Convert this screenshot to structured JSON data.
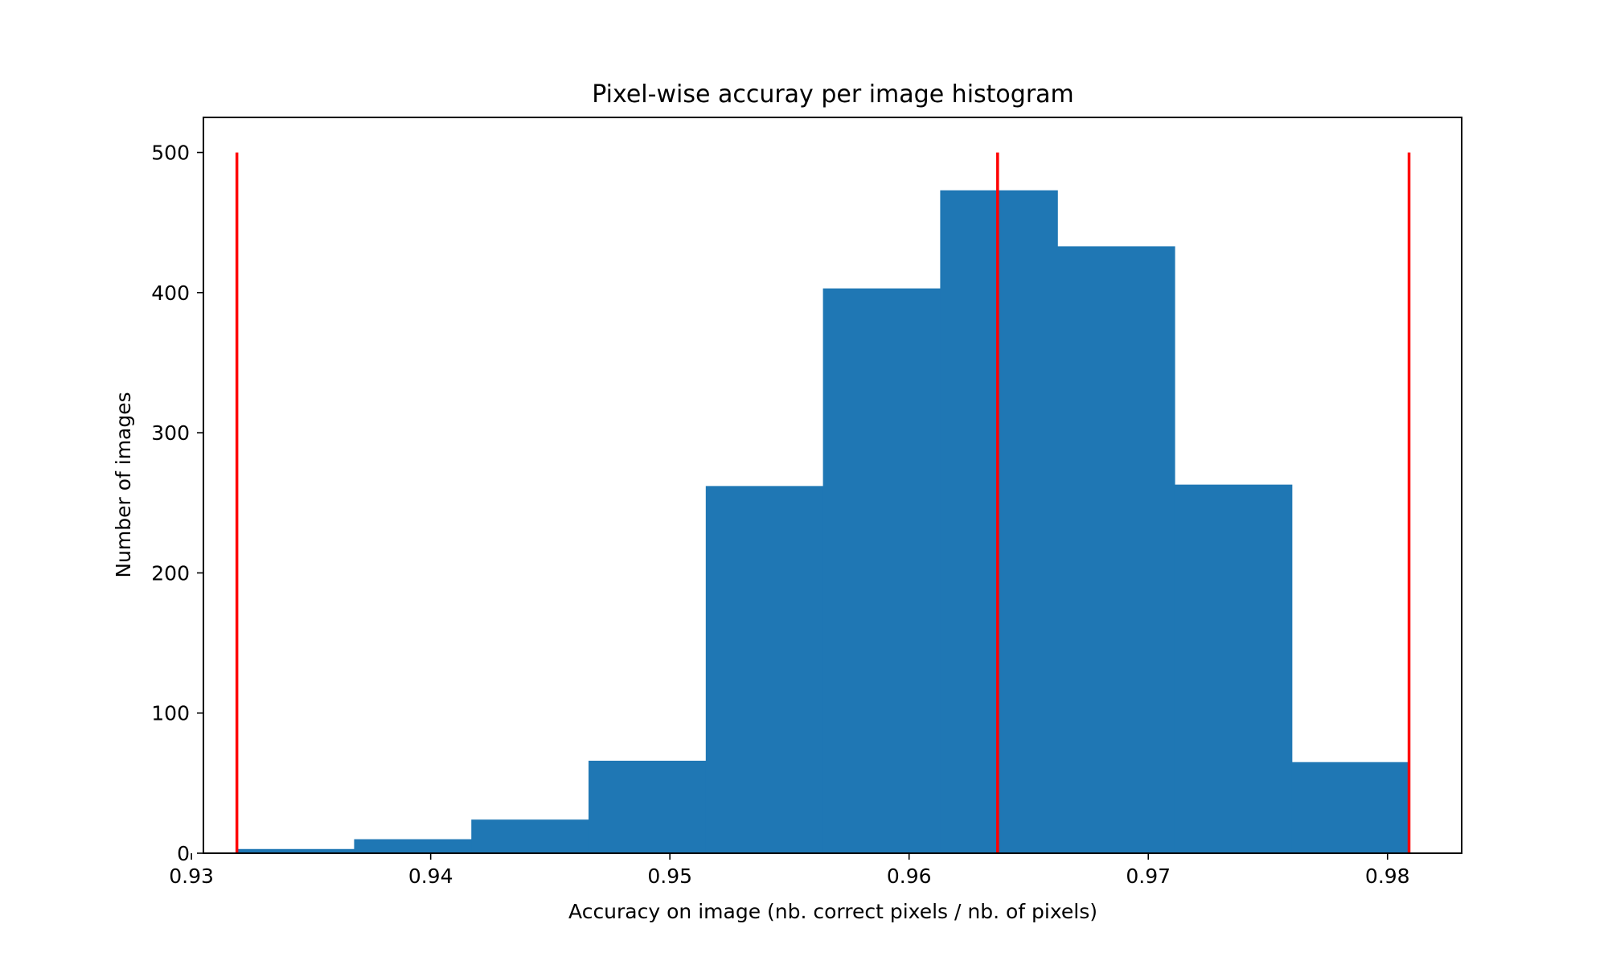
{
  "chart_data": {
    "type": "bar",
    "title": "Pixel-wise accuray per image histogram",
    "xlabel": "Accuracy on image (nb. correct pixels / nb. of pixels)",
    "ylabel": "Number of images",
    "xlim": [
      0.9305,
      0.9831
    ],
    "ylim": [
      0,
      525
    ],
    "x_ticks": [
      0.93,
      0.94,
      0.95,
      0.96,
      0.97,
      0.98
    ],
    "x_tick_labels": [
      "0.93",
      "0.94",
      "0.95",
      "0.96",
      "0.97",
      "0.98"
    ],
    "y_ticks": [
      0,
      100,
      200,
      300,
      400,
      500
    ],
    "y_tick_labels": [
      "0",
      "100",
      "200",
      "300",
      "400",
      "500"
    ],
    "bin_edges": [
      0.9319,
      0.9368,
      0.9417,
      0.9466,
      0.9515,
      0.9564,
      0.9613,
      0.9662,
      0.9711,
      0.976,
      0.9809
    ],
    "values": [
      3,
      10,
      24,
      66,
      262,
      403,
      473,
      433,
      263,
      65
    ],
    "bar_color": "#1f77b4",
    "grid": false,
    "legend": false,
    "vlines": {
      "color": "#ff0000",
      "x": [
        0.9319,
        0.9637,
        0.9809
      ],
      "ymin": 0,
      "ymax": 500
    }
  }
}
